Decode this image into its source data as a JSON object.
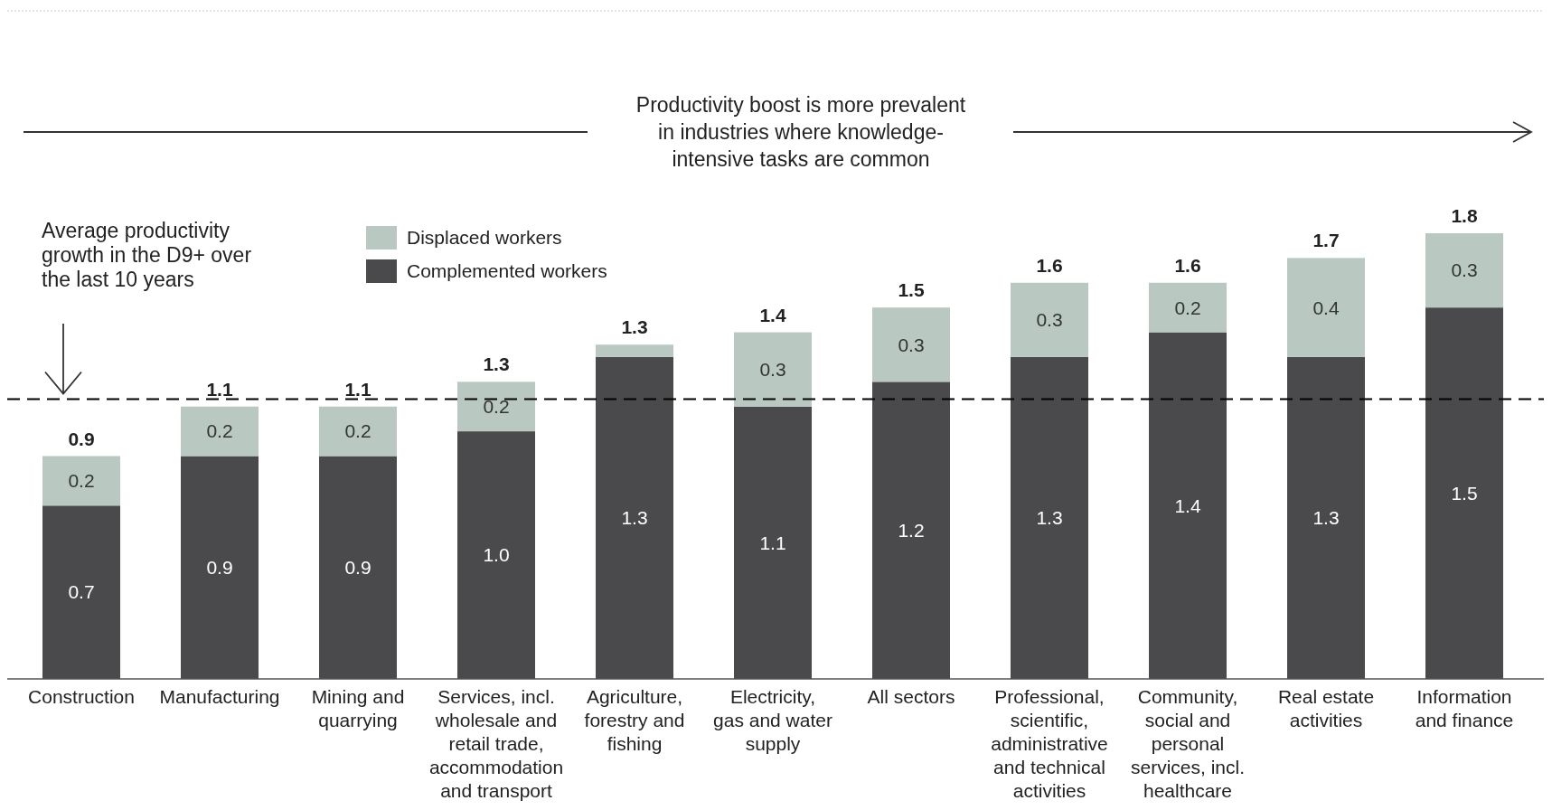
{
  "chart_data": {
    "type": "bar",
    "stacked": true,
    "categories": [
      "Construction",
      "Manufacturing",
      "Mining and quarrying",
      "Services, incl. wholesale and retail trade, accommodation and transport",
      "Agriculture, forestry and fishing",
      "Electricity, gas and water supply",
      "All sectors",
      "Professional, scientific, administrative and technical activities",
      "Community, social and personal services, incl. healthcare",
      "Real estate activities",
      "Information and finance"
    ],
    "series": [
      {
        "name": "Complemented workers",
        "color": "#4a4a4c",
        "values": [
          0.7,
          0.9,
          0.9,
          1.0,
          1.3,
          1.1,
          1.2,
          1.3,
          1.4,
          1.3,
          1.5
        ],
        "value_labels": [
          "0.7",
          "0.9",
          "0.9",
          "1.0",
          "1.3",
          "1.1",
          "1.2",
          "1.3",
          "1.4",
          "1.3",
          "1.5"
        ]
      },
      {
        "name": "Displaced workers",
        "color": "#b9c9c2",
        "values": [
          0.2,
          0.2,
          0.2,
          0.2,
          0.05,
          0.3,
          0.3,
          0.3,
          0.2,
          0.4,
          0.3
        ],
        "value_labels": [
          "0.2",
          "0.2",
          "0.2",
          "0.2",
          null,
          "0.3",
          "0.3",
          "0.3",
          "0.2",
          "0.4",
          "0.3"
        ]
      }
    ],
    "totals": [
      "0.9",
      "1.1",
      "1.1",
      "1.3",
      "1.3",
      "1.4",
      "1.5",
      "1.6",
      "1.6",
      "1.7",
      "1.8"
    ],
    "ref_lines": [
      {
        "axis": "y",
        "value": 1.13,
        "line_style": "dashed",
        "color": "#000000"
      }
    ],
    "annotations": [
      "Productivity boost is more prevalent in industries where knowledge-intensive tasks are common",
      "Average productivity growth in the D9+ over the last 10 years"
    ],
    "legend": "top left"
  }
}
